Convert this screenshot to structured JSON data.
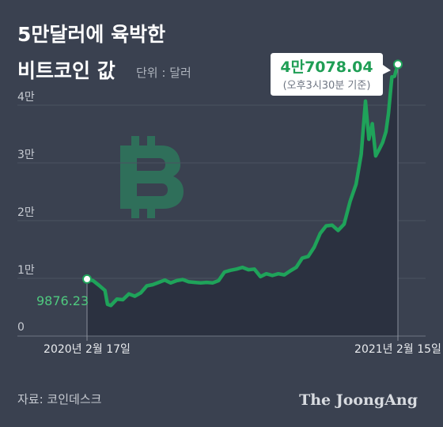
{
  "title_line1": "5만달러에 육박한",
  "title_line2": "비트코인 값",
  "unit_label": "단위 : 달러",
  "source": "자료: 코인데스크",
  "brand": "The JoongAng",
  "colors": {
    "background": "#3a4150",
    "line": "#1fa35a",
    "area": "#2b3140",
    "logo": "#2f6f5a",
    "label_green": "#4fc97f"
  },
  "icon": "bitcoin-icon",
  "chart_data": {
    "type": "area",
    "title": "5만달러에 육박한 비트코인 값",
    "unit": "단위 : 달러",
    "ylim": [
      0,
      50000
    ],
    "y_ticks": [
      {
        "value": 0,
        "label": "0"
      },
      {
        "value": 10000,
        "label": "1만"
      },
      {
        "value": 20000,
        "label": "2만"
      },
      {
        "value": 30000,
        "label": "3만"
      },
      {
        "value": 40000,
        "label": "4만"
      }
    ],
    "x_ticks": [
      {
        "x": "2020-02-17",
        "label": "2020년 2월 17일"
      },
      {
        "x": "2021-02-15",
        "label": "2021년 2월 15일"
      }
    ],
    "grid": true,
    "start": {
      "x": "2020-02-17",
      "y": 9876.23,
      "label": "9876.23"
    },
    "end": {
      "x": "2021-02-15",
      "y": 47078.04,
      "label": "4만7078.04",
      "note": "(오후3시30분 기준)"
    },
    "series": [
      {
        "x": [
          "2020-02-17",
          "2020-02-24",
          "2020-03-02",
          "2020-03-09",
          "2020-03-12",
          "2020-03-16",
          "2020-03-23",
          "2020-03-30",
          "2020-04-06",
          "2020-04-13",
          "2020-04-20",
          "2020-04-27",
          "2020-05-04",
          "2020-05-11",
          "2020-05-18",
          "2020-05-25",
          "2020-06-01",
          "2020-06-08",
          "2020-06-15",
          "2020-06-22",
          "2020-06-29",
          "2020-07-06",
          "2020-07-13",
          "2020-07-20",
          "2020-07-27",
          "2020-08-03",
          "2020-08-10",
          "2020-08-17",
          "2020-08-24",
          "2020-08-31",
          "2020-09-07",
          "2020-09-14",
          "2020-09-21",
          "2020-09-28",
          "2020-10-05",
          "2020-10-12",
          "2020-10-19",
          "2020-10-26",
          "2020-11-02",
          "2020-11-09",
          "2020-11-16",
          "2020-11-23",
          "2020-11-30",
          "2020-12-07",
          "2020-12-14",
          "2020-12-21",
          "2020-12-28",
          "2021-01-03",
          "2021-01-08",
          "2021-01-12",
          "2021-01-16",
          "2021-01-20",
          "2021-01-24",
          "2021-01-28",
          "2021-02-01",
          "2021-02-04",
          "2021-02-08",
          "2021-02-11",
          "2021-02-15"
        ],
        "values": [
          9876.23,
          9600,
          8800,
          7900,
          5500,
          5300,
          6400,
          6300,
          7300,
          6900,
          7500,
          8700,
          8900,
          9300,
          9700,
          9200,
          9600,
          9800,
          9400,
          9300,
          9200,
          9300,
          9200,
          9600,
          11100,
          11400,
          11600,
          11900,
          11500,
          11600,
          10300,
          10800,
          10500,
          10800,
          10600,
          11300,
          11900,
          13500,
          13800,
          15400,
          17800,
          19100,
          19200,
          18300,
          19400,
          23300,
          26300,
          31500,
          40700,
          34100,
          36800,
          31200,
          32300,
          33500,
          35400,
          38600,
          44900,
          45000,
          47078.04
        ]
      }
    ]
  }
}
